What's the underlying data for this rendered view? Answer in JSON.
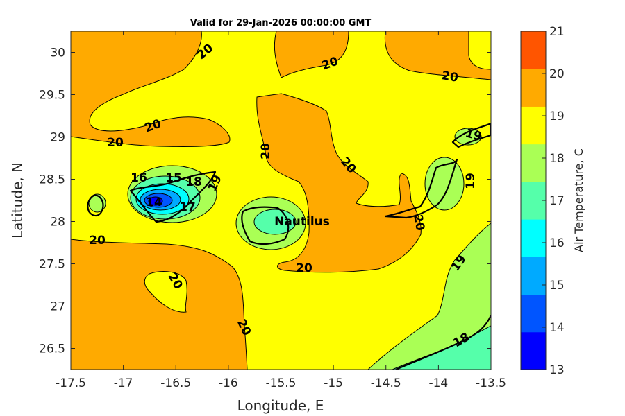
{
  "chart_data": {
    "type": "contour",
    "title": "Valid for 29-Jan-2026 00:00:00 GMT",
    "xlabel": "Longitude, E",
    "ylabel": "Latitude, N",
    "xlim": [
      -17.5,
      -13.5
    ],
    "ylim": [
      26.25,
      30.25
    ],
    "xticks": [
      "-17.5",
      "-17",
      "-16.5",
      "-16",
      "-15.5",
      "-15",
      "-14.5",
      "-14",
      "-13.5"
    ],
    "yticks": [
      "26.5",
      "27",
      "27.5",
      "28",
      "28.5",
      "29",
      "29.5",
      "30"
    ],
    "colorbar": {
      "label": "Air Temperature, C",
      "ticks": [
        "13",
        "14",
        "15",
        "16",
        "17",
        "18",
        "19",
        "20",
        "21"
      ],
      "range": [
        13,
        21
      ],
      "colors": [
        "#0000ff",
        "#0055ff",
        "#00aaff",
        "#00ffff",
        "#55ffaa",
        "#aaff55",
        "#ffff00",
        "#ffaa00",
        "#ff5500"
      ]
    },
    "contour_labels": [
      "20",
      "20",
      "20",
      "20",
      "20",
      "20",
      "20",
      "20",
      "20",
      "20",
      "20",
      "20",
      "19",
      "19",
      "19",
      "19",
      "18",
      "14",
      "15",
      "16",
      "17",
      "18"
    ],
    "station_label": "Nautilus"
  }
}
